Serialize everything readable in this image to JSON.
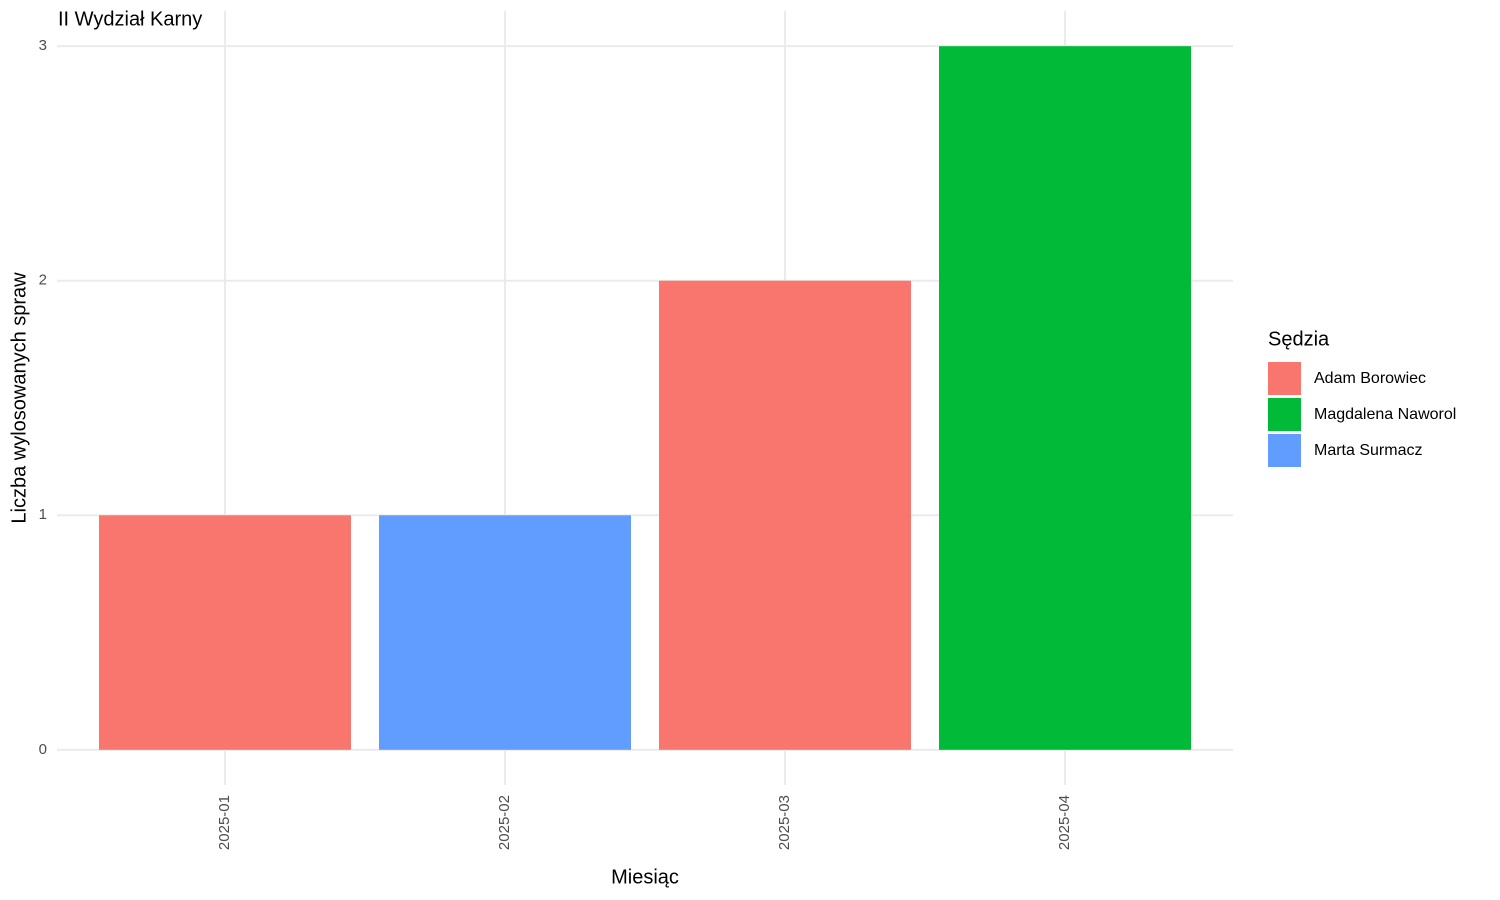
{
  "chart_data": {
    "type": "bar",
    "stacked": true,
    "title": "II Wydział Karny",
    "x_label": "Miesiąc",
    "y_label": "Liczba wylosowanych spraw",
    "legend_title": "Sędzia",
    "categories": [
      "2025-01",
      "2025-02",
      "2025-03",
      "2025-04"
    ],
    "series": [
      {
        "name": "Adam Borowiec",
        "color": "#f8766d",
        "values": [
          1,
          null,
          2,
          null
        ]
      },
      {
        "name": "Magdalena Naworol",
        "color": "#00ba38",
        "values": [
          null,
          null,
          null,
          3
        ]
      },
      {
        "name": "Marta Surmacz",
        "color": "#619cff",
        "values": [
          null,
          1,
          null,
          null
        ]
      }
    ],
    "ylim": [
      -0.15,
      3.15
    ],
    "yticks": [
      0,
      1,
      2,
      3
    ],
    "grid": true,
    "legend_position": "right"
  }
}
